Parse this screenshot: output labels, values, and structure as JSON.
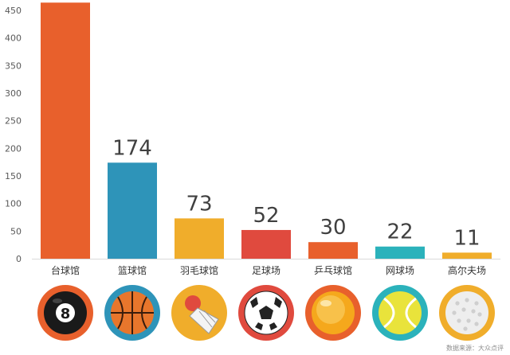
{
  "chart_data": {
    "type": "bar",
    "categories": [
      "台球馆",
      "篮球馆",
      "羽毛球馆",
      "足球场",
      "乒乓球馆",
      "网球场",
      "高尔夫场"
    ],
    "values": [
      464,
      174,
      73,
      52,
      30,
      22,
      11
    ],
    "colors": [
      "#E8602C",
      "#2E94B9",
      "#F0AD2B",
      "#E04A3E",
      "#E8602C",
      "#2BB2BB",
      "#F0AD2B"
    ],
    "icons": [
      "billiard-8-ball-icon",
      "basketball-icon",
      "shuttlecock-icon",
      "soccer-ball-icon",
      "ping-pong-ball-icon",
      "tennis-ball-icon",
      "golf-ball-icon"
    ],
    "ylim": [
      0,
      450
    ],
    "yticks": [
      0,
      50,
      100,
      150,
      200,
      250,
      300,
      350,
      400,
      450
    ],
    "grid": false,
    "source": "数据来源：大众点评"
  }
}
